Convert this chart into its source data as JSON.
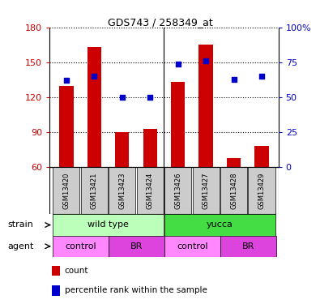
{
  "title": "GDS743 / 258349_at",
  "samples": [
    "GSM13420",
    "GSM13421",
    "GSM13423",
    "GSM13424",
    "GSM13426",
    "GSM13427",
    "GSM13428",
    "GSM13429"
  ],
  "counts": [
    130,
    163,
    90,
    93,
    133,
    165,
    68,
    78
  ],
  "percentile_ranks": [
    62,
    65,
    50,
    50,
    74,
    76,
    63,
    65
  ],
  "ylim_left": [
    60,
    180
  ],
  "ylim_right": [
    0,
    100
  ],
  "yticks_left": [
    60,
    90,
    120,
    150,
    180
  ],
  "yticks_right": [
    0,
    25,
    50,
    75,
    100
  ],
  "bar_color": "#cc0000",
  "dot_color": "#0000cc",
  "bar_bottom": 60,
  "wt_color": "#bbffbb",
  "yucca_color": "#44dd44",
  "control_color": "#ff88ff",
  "br_color": "#dd44dd",
  "sample_box_color": "#cccccc",
  "tick_color_left": "#cc0000",
  "tick_color_right": "#0000cc",
  "title_fontsize": 9,
  "legend_count_color": "#cc0000",
  "legend_pct_color": "#0000cc"
}
